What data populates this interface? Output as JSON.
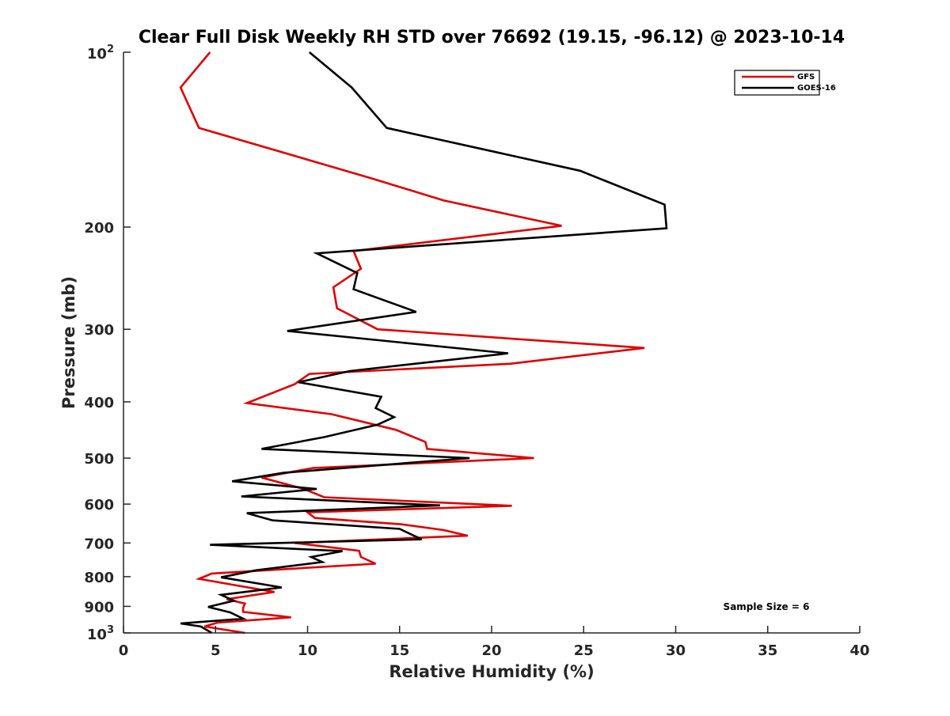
{
  "chart_data": {
    "type": "line",
    "title": "Clear Full Disk Weekly RH STD over 76692 (19.15, -96.12) @ 2023-10-14",
    "xlabel": "Relative Humidity (%)",
    "ylabel": "Pressure (mb)",
    "xlim": [
      0,
      40
    ],
    "ylim": [
      100,
      1000
    ],
    "yscale": "log",
    "y_reversed": true,
    "grid": false,
    "legend_position": "top-right",
    "xticks": [
      0,
      5,
      10,
      15,
      20,
      25,
      30,
      35,
      40
    ],
    "xtick_labels": [
      "0",
      "5",
      "10",
      "15",
      "20",
      "25",
      "30",
      "35",
      "40"
    ],
    "yticks": [
      100,
      200,
      300,
      400,
      500,
      600,
      700,
      800,
      900,
      1000
    ],
    "ytick_labels": [
      {
        "base": "10",
        "exp": "2"
      },
      {
        "text": "200"
      },
      {
        "text": "300"
      },
      {
        "text": "400"
      },
      {
        "text": "500"
      },
      {
        "text": "600"
      },
      {
        "text": "700"
      },
      {
        "text": "800"
      },
      {
        "text": "900"
      },
      {
        "base": "10",
        "exp": "3"
      }
    ],
    "annotation": "Sample Size = 6",
    "series": [
      {
        "name": "GFS",
        "color": "#e00000",
        "points": [
          [
            4.7,
            100
          ],
          [
            3.1,
            115
          ],
          [
            4.1,
            135
          ],
          [
            13.5,
            165
          ],
          [
            17.4,
            180
          ],
          [
            23.8,
            199
          ],
          [
            12.5,
            220
          ],
          [
            12.9,
            236
          ],
          [
            11.4,
            254
          ],
          [
            11.6,
            276
          ],
          [
            13.8,
            300
          ],
          [
            28.3,
            323
          ],
          [
            21.0,
            344
          ],
          [
            10.1,
            358
          ],
          [
            9.3,
            373
          ],
          [
            6.7,
            402
          ],
          [
            11.3,
            420
          ],
          [
            14.8,
            447
          ],
          [
            16.4,
            469
          ],
          [
            16.5,
            482
          ],
          [
            22.3,
            500
          ],
          [
            10.3,
            520
          ],
          [
            7.5,
            540
          ],
          [
            9.8,
            565
          ],
          [
            10.9,
            584
          ],
          [
            21.1,
            604
          ],
          [
            10.0,
            620
          ],
          [
            10.4,
            634
          ],
          [
            15.1,
            650
          ],
          [
            17.4,
            665
          ],
          [
            18.7,
            680
          ],
          [
            9.3,
            700
          ],
          [
            12.8,
            722
          ],
          [
            12.9,
            740
          ],
          [
            13.7,
            760
          ],
          [
            4.8,
            790
          ],
          [
            4.1,
            807
          ],
          [
            6.3,
            830
          ],
          [
            8.2,
            850
          ],
          [
            5.6,
            875
          ],
          [
            6.6,
            890
          ],
          [
            6.5,
            905
          ],
          [
            6.5,
            920
          ],
          [
            9.1,
            940
          ],
          [
            5.1,
            960
          ],
          [
            4.4,
            975
          ],
          [
            6.6,
            1000
          ]
        ]
      },
      {
        "name": "GOES-16",
        "color": "#000000",
        "points": [
          [
            10.1,
            100
          ],
          [
            12.4,
            115
          ],
          [
            14.3,
            135
          ],
          [
            24.8,
            160
          ],
          [
            29.4,
            183
          ],
          [
            29.5,
            201
          ],
          [
            10.5,
            222
          ],
          [
            12.7,
            240
          ],
          [
            12.5,
            256
          ],
          [
            15.9,
            280
          ],
          [
            8.9,
            302
          ],
          [
            20.9,
            330
          ],
          [
            12.3,
            354
          ],
          [
            9.5,
            370
          ],
          [
            14.0,
            392
          ],
          [
            13.7,
            410
          ],
          [
            14.7,
            425
          ],
          [
            13.8,
            438
          ],
          [
            10.9,
            460
          ],
          [
            7.5,
            482
          ],
          [
            18.8,
            500
          ],
          [
            8.7,
            530
          ],
          [
            5.9,
            548
          ],
          [
            10.5,
            565
          ],
          [
            6.4,
            582
          ],
          [
            17.2,
            603
          ],
          [
            6.7,
            622
          ],
          [
            8.1,
            640
          ],
          [
            15.0,
            662
          ],
          [
            16.2,
            690
          ],
          [
            4.7,
            705
          ],
          [
            11.9,
            723
          ],
          [
            10.2,
            740
          ],
          [
            10.8,
            755
          ],
          [
            7.2,
            780
          ],
          [
            5.3,
            802
          ],
          [
            8.6,
            835
          ],
          [
            5.3,
            860
          ],
          [
            6.0,
            880
          ],
          [
            4.6,
            902
          ],
          [
            5.8,
            922
          ],
          [
            6.5,
            945
          ],
          [
            3.1,
            963
          ],
          [
            4.2,
            975
          ],
          [
            4.8,
            1000
          ]
        ]
      }
    ]
  }
}
